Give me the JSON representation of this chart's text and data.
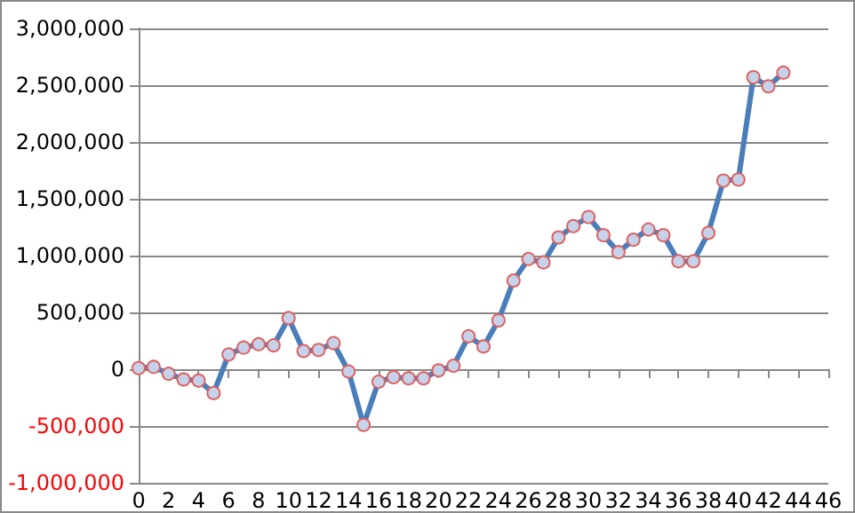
{
  "chart_data": {
    "type": "line",
    "x": [
      0,
      1,
      2,
      3,
      4,
      5,
      6,
      7,
      8,
      9,
      10,
      11,
      12,
      13,
      14,
      15,
      16,
      17,
      18,
      19,
      20,
      21,
      22,
      23,
      24,
      25,
      26,
      27,
      28,
      29,
      30,
      31,
      32,
      33,
      34,
      35,
      36,
      37,
      38,
      39,
      40,
      41,
      42,
      43
    ],
    "series": [
      {
        "color": "#4a7ebb",
        "values": [
          10000,
          20000,
          -40000,
          -90000,
          -100000,
          -210000,
          130000,
          190000,
          220000,
          210000,
          450000,
          160000,
          170000,
          230000,
          -20000,
          -490000,
          -110000,
          -70000,
          -80000,
          -80000,
          -10000,
          30000,
          290000,
          200000,
          430000,
          780000,
          970000,
          940000,
          1160000,
          1260000,
          1340000,
          1180000,
          1030000,
          1140000,
          1230000,
          1180000,
          950000,
          950000,
          1200000,
          1660000,
          1670000,
          2570000,
          2490000,
          2610000
        ]
      }
    ],
    "xlim": [
      0,
      46
    ],
    "xticks": [
      0,
      2,
      4,
      6,
      8,
      10,
      12,
      14,
      16,
      18,
      20,
      22,
      24,
      26,
      28,
      30,
      32,
      34,
      36,
      38,
      40,
      42,
      44,
      46
    ],
    "ylim": [
      -1000000,
      3000000
    ],
    "yticks": [
      {
        "value": -1000000,
        "label": "-1,000,000"
      },
      {
        "value": -500000,
        "label": "-500,000"
      },
      0,
      {
        "value": 500000,
        "label": "500,000"
      },
      {
        "value": 1000000,
        "label": "1,000,000"
      },
      {
        "value": 1500000,
        "label": "1,500,000"
      },
      {
        "value": 2000000,
        "label": "2,000,000"
      },
      {
        "value": 2500000,
        "label": "2,500,000"
      },
      {
        "value": 3000000,
        "label": "3,000,000"
      }
    ],
    "grid": "y",
    "marker": "circle",
    "line_style": "solid"
  }
}
